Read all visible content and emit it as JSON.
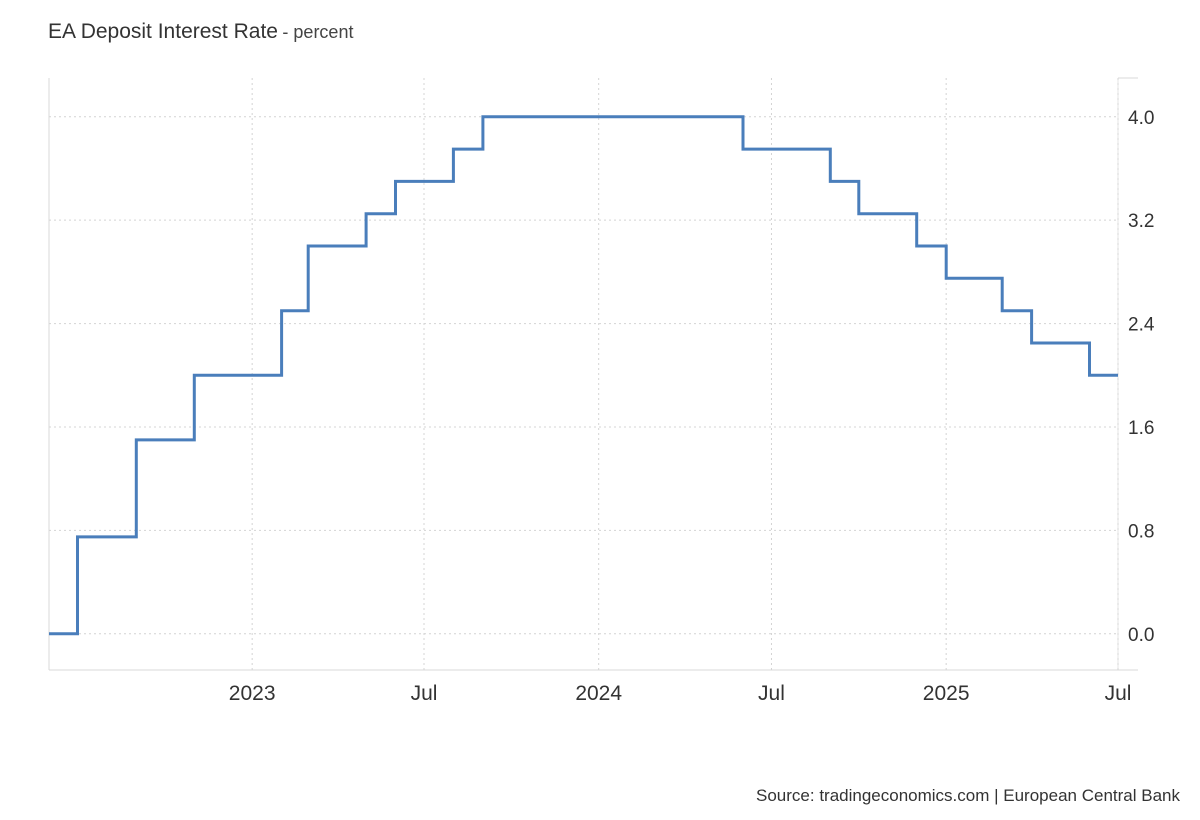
{
  "title": "EA Deposit Interest Rate",
  "title_suffix": "- percent",
  "source": "Source: tradingeconomics.com | European Central Bank",
  "chart_data": {
    "type": "line",
    "step": true,
    "title": "EA Deposit Interest Rate",
    "subtitle": "percent",
    "series": [
      {
        "color": "#4a7ebb",
        "points": [
          {
            "x": "2022-06",
            "y": 0.0
          },
          {
            "x": "2022-07",
            "y": 0.75
          },
          {
            "x": "2022-09",
            "y": 1.5
          },
          {
            "x": "2022-11",
            "y": 2.0
          },
          {
            "x": "2023-02",
            "y": 2.5
          },
          {
            "x": "2023-03",
            "y": 3.0
          },
          {
            "x": "2023-05",
            "y": 3.25
          },
          {
            "x": "2023-06",
            "y": 3.5
          },
          {
            "x": "2023-08",
            "y": 3.75
          },
          {
            "x": "2023-09",
            "y": 4.0
          },
          {
            "x": "2024-06",
            "y": 3.75
          },
          {
            "x": "2024-09",
            "y": 3.5
          },
          {
            "x": "2024-10",
            "y": 3.25
          },
          {
            "x": "2024-12",
            "y": 3.0
          },
          {
            "x": "2025-01",
            "y": 2.75
          },
          {
            "x": "2025-03",
            "y": 2.5
          },
          {
            "x": "2025-04",
            "y": 2.25
          },
          {
            "x": "2025-06",
            "y": 2.0
          },
          {
            "x": "2025-07",
            "y": 2.0
          }
        ]
      }
    ],
    "y_ticks": [
      {
        "value": 0.0,
        "label": "0.0"
      },
      {
        "value": 0.8,
        "label": "0.8"
      },
      {
        "value": 1.6,
        "label": "1.6"
      },
      {
        "value": 2.4,
        "label": "2.4"
      },
      {
        "value": 3.2,
        "label": "3.2"
      },
      {
        "value": 4.0,
        "label": "4.0"
      }
    ],
    "x_ticks": [
      {
        "date": "2023-01",
        "label": "2023"
      },
      {
        "date": "2023-07",
        "label": "Jul"
      },
      {
        "date": "2024-01",
        "label": "2024"
      },
      {
        "date": "2024-07",
        "label": "Jul"
      },
      {
        "date": "2025-01",
        "label": "2025"
      },
      {
        "date": "2025-07",
        "label": "Jul"
      }
    ],
    "xlim": [
      "2022-06",
      "2025-07"
    ],
    "ylim": [
      -0.28,
      4.3
    ],
    "y_axis_side": "right",
    "grid": true,
    "legend": "none"
  }
}
